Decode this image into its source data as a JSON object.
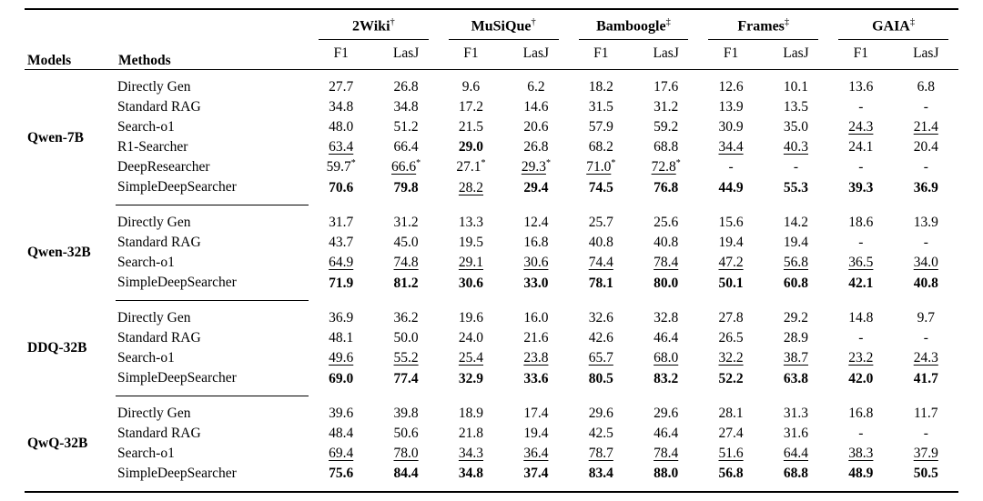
{
  "page": {
    "background": "#ffffff",
    "text_color": "#000000"
  },
  "table": {
    "header": {
      "models": "Models",
      "methods": "Methods"
    },
    "benchmarks": [
      {
        "name": "2Wiki",
        "mark": "†"
      },
      {
        "name": "MuSiQue",
        "mark": "†"
      },
      {
        "name": "Bamboogle",
        "mark": "‡"
      },
      {
        "name": "Frames",
        "mark": "‡"
      },
      {
        "name": "GAIA",
        "mark": "‡"
      }
    ],
    "sub_headers": [
      "F1",
      "LasJ"
    ],
    "cell_flag_legend": "b=bold, u=underline, *=asterisk superscript",
    "blocks": [
      {
        "model": "Qwen-7B",
        "rows": [
          {
            "method": "Directly Gen",
            "cells": [
              "27.7",
              "26.8",
              "9.6",
              "6.2",
              "18.2",
              "17.6",
              "12.6",
              "10.1",
              "13.6",
              "6.8"
            ]
          },
          {
            "method": "Standard RAG",
            "cells": [
              "34.8",
              "34.8",
              "17.2",
              "14.6",
              "31.5",
              "31.2",
              "13.9",
              "13.5",
              "-",
              "-"
            ]
          },
          {
            "method": "Search-o1",
            "cells": [
              "48.0",
              "51.2",
              "21.5",
              "20.6",
              "57.9",
              "59.2",
              "30.9",
              "35.0",
              "24.3|u",
              "21.4|u"
            ]
          },
          {
            "method": "R1-Searcher",
            "cells": [
              "63.4|u",
              "66.4",
              "29.0|b",
              "26.8",
              "68.2",
              "68.8",
              "34.4|u",
              "40.3|u",
              "24.1",
              "20.4"
            ]
          },
          {
            "method": "DeepResearcher",
            "cells": [
              "59.7|*",
              "66.6|u*",
              "27.1|*",
              "29.3|u*",
              "71.0|u*",
              "72.8|u*",
              "-",
              "-",
              "-",
              "-"
            ]
          },
          {
            "method": "SimpleDeepSearcher",
            "cells": [
              "70.6|b",
              "79.8|b",
              "28.2|u",
              "29.4|b",
              "74.5|b",
              "76.8|b",
              "44.9|b",
              "55.3|b",
              "39.3|b",
              "36.9|b"
            ]
          }
        ]
      },
      {
        "model": "Qwen-32B",
        "rows": [
          {
            "method": "Directly Gen",
            "cells": [
              "31.7",
              "31.2",
              "13.3",
              "12.4",
              "25.7",
              "25.6",
              "15.6",
              "14.2",
              "18.6",
              "13.9"
            ]
          },
          {
            "method": "Standard RAG",
            "cells": [
              "43.7",
              "45.0",
              "19.5",
              "16.8",
              "40.8",
              "40.8",
              "19.4",
              "19.4",
              "-",
              "-"
            ]
          },
          {
            "method": "Search-o1",
            "cells": [
              "64.9|u",
              "74.8|u",
              "29.1|u",
              "30.6|u",
              "74.4|u",
              "78.4|u",
              "47.2|u",
              "56.8|u",
              "36.5|u",
              "34.0|u"
            ]
          },
          {
            "method": "SimpleDeepSearcher",
            "cells": [
              "71.9|b",
              "81.2|b",
              "30.6|b",
              "33.0|b",
              "78.1|b",
              "80.0|b",
              "50.1|b",
              "60.8|b",
              "42.1|b",
              "40.8|b"
            ]
          }
        ]
      },
      {
        "model": "DDQ-32B",
        "rows": [
          {
            "method": "Directly Gen",
            "cells": [
              "36.9",
              "36.2",
              "19.6",
              "16.0",
              "32.6",
              "32.8",
              "27.8",
              "29.2",
              "14.8",
              "9.7"
            ]
          },
          {
            "method": "Standard RAG",
            "cells": [
              "48.1",
              "50.0",
              "24.0",
              "21.6",
              "42.6",
              "46.4",
              "26.5",
              "28.9",
              "-",
              "-"
            ]
          },
          {
            "method": "Search-o1",
            "cells": [
              "49.6|u",
              "55.2|u",
              "25.4|u",
              "23.8|u",
              "65.7|u",
              "68.0|u",
              "32.2|u",
              "38.7|u",
              "23.2|u",
              "24.3|u"
            ]
          },
          {
            "method": "SimpleDeepSearcher",
            "cells": [
              "69.0|b",
              "77.4|b",
              "32.9|b",
              "33.6|b",
              "80.5|b",
              "83.2|b",
              "52.2|b",
              "63.8|b",
              "42.0|b",
              "41.7|b"
            ]
          }
        ]
      },
      {
        "model": "QwQ-32B",
        "rows": [
          {
            "method": "Directly Gen",
            "cells": [
              "39.6",
              "39.8",
              "18.9",
              "17.4",
              "29.6",
              "29.6",
              "28.1",
              "31.3",
              "16.8",
              "11.7"
            ]
          },
          {
            "method": "Standard RAG",
            "cells": [
              "48.4",
              "50.6",
              "21.8",
              "19.4",
              "42.5",
              "46.4",
              "27.4",
              "31.6",
              "-",
              "-"
            ]
          },
          {
            "method": "Search-o1",
            "cells": [
              "69.4|u",
              "78.0|u",
              "34.3|u",
              "36.4|u",
              "78.7|u",
              "78.4|u",
              "51.6|u",
              "64.4|u",
              "38.3|u",
              "37.9|u"
            ]
          },
          {
            "method": "SimpleDeepSearcher",
            "cells": [
              "75.6|b",
              "84.4|b",
              "34.8|b",
              "37.4|b",
              "83.4|b",
              "88.0|b",
              "56.8|b",
              "68.8|b",
              "48.9|b",
              "50.5|b"
            ]
          }
        ]
      }
    ]
  }
}
